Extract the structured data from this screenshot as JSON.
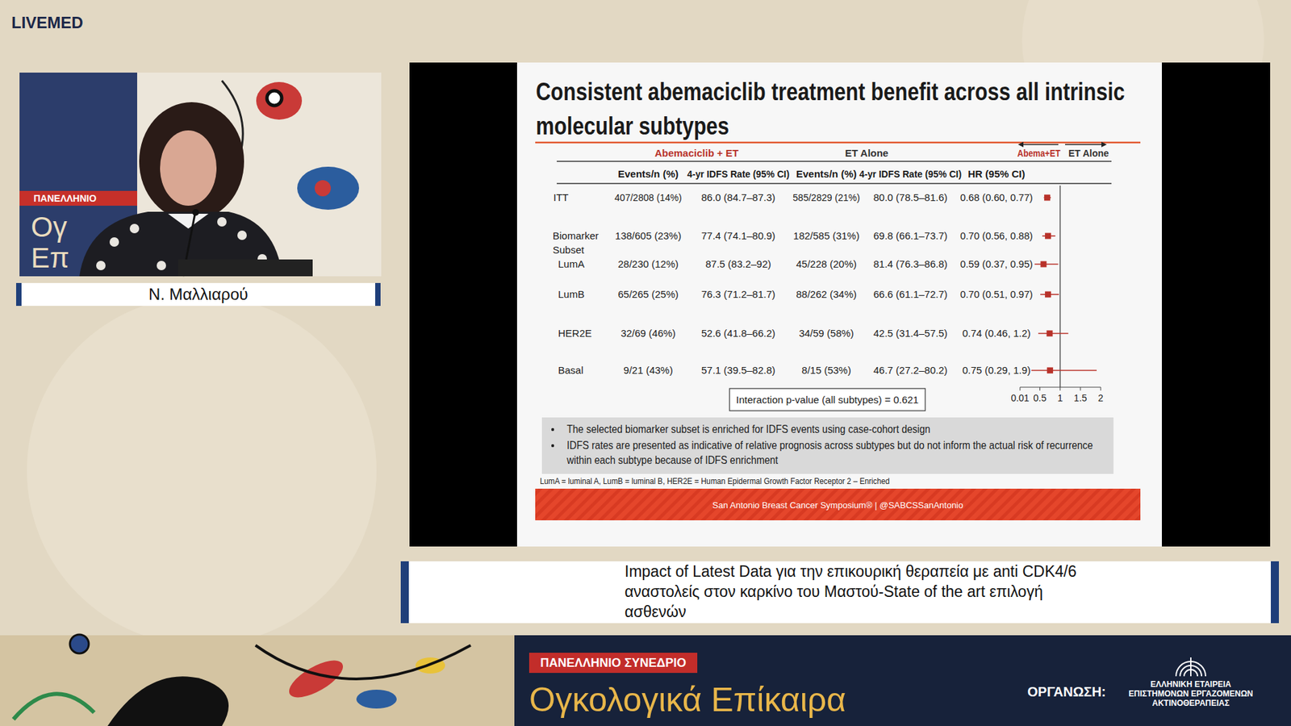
{
  "chart_data": {
    "type": "forest",
    "title": "Consistent abemaciclib treatment benefit across all intrinsic molecular subtypes",
    "group_headers": [
      "Abemaciclib + ET",
      "ET Alone"
    ],
    "columns": [
      "Events/n (%)",
      "4-yr IDFS Rate (95% CI)",
      "Events/n (%)",
      "4-yr IDFS Rate (95% CI)",
      "HR (95% CI)"
    ],
    "direction_labels": [
      "Abema+ET",
      "ET Alone"
    ],
    "categories": [
      "ITT",
      "Biomarker Subset",
      "LumA",
      "LumB",
      "HER2E",
      "Basal"
    ],
    "rows": [
      [
        "407/2808 (14%)",
        "86.0 (84.7–87.3)",
        "585/2829 (21%)",
        "80.0 (78.5–81.6)",
        "0.68 (0.60, 0.77)"
      ],
      [
        "138/605 (23%)",
        "77.4 (74.1–80.9)",
        "182/585 (31%)",
        "69.8 (66.1–73.7)",
        "0.70 (0.56, 0.88)"
      ],
      [
        "28/230 (12%)",
        "87.5 (83.2–92)",
        "45/228 (20%)",
        "81.4 (76.3–86.8)",
        "0.59 (0.37, 0.95)"
      ],
      [
        "65/265 (25%)",
        "76.3 (71.2–81.7)",
        "88/262 (34%)",
        "66.6 (61.1–72.7)",
        "0.70 (0.51, 0.97)"
      ],
      [
        "32/69 (46%)",
        "52.6 (41.8–66.2)",
        "34/59 (58%)",
        "42.5 (31.4–57.5)",
        "0.74 (0.46, 1.2)"
      ],
      [
        "9/21 (43%)",
        "57.1 (39.5–82.8)",
        "8/15 (53%)",
        "46.7 (27.2–80.2)",
        "0.75 (0.29, 1.9)"
      ]
    ],
    "values": [
      0.68,
      0.7,
      0.59,
      0.7,
      0.74,
      0.75
    ],
    "ci_lower": [
      0.6,
      0.56,
      0.37,
      0.51,
      0.46,
      0.29
    ],
    "ci_upper": [
      0.77,
      0.88,
      0.95,
      0.97,
      1.2,
      1.9
    ],
    "reference_value": 1,
    "xlim": [
      0.01,
      2
    ],
    "xticks": [
      0.01,
      0.5,
      1,
      1.5,
      2
    ],
    "orientation": "horizontal",
    "marker": "square",
    "color": "#b8322a",
    "annotation": "Interaction p-value (all subtypes) = 0.621",
    "notes": [
      "The selected biomarker subset is enriched for IDFS events using case-cohort design",
      "IDFS rates are presented as indicative of relative prognosis across subtypes but do not inform the actual risk of recurrence within each subtype because of IDFS enrichment"
    ],
    "footnote": "LumA = luminal A, LumB = luminal B, HER2E = Human Epidermal Growth Factor Receptor 2 – Enriched",
    "banner": "San Antonio Breast Cancer Symposium® | @SABCSSanAntonio"
  },
  "page": {
    "brand": "LIVEMED",
    "speaker": "Ν. Μαλλιαρού",
    "video_texts": [
      "ΠΑΝΕΛΛΗΝΙΟ",
      "Ογ",
      "Επ"
    ],
    "caption": "Impact of Latest Data για την επικουρική θεραπεία με anti CDK4/6 αναστολείς στον καρκίνο του Μαστού-State of the art επιλογή ασθενών",
    "event_badge": "ΠΑΝΕΛΛΗΝΙΟ ΣΥΝΕΔΡΙΟ",
    "event_title": "Ογκολογικά Επίκαιρα",
    "organizer_label": "ΟΡΓΑΝΩΣΗ:",
    "organizer": [
      "ΕΛΛΗΝΙΚΗ ΕΤΑΙΡΕΙΑ",
      "ΕΠΙΣΤΗΜΟΝΩΝ ΕΡΓΑΖΟΜΕΝΩΝ",
      "ΑΚΤΙΝΟΘΕΡΑΠΕΙΑΣ"
    ]
  }
}
